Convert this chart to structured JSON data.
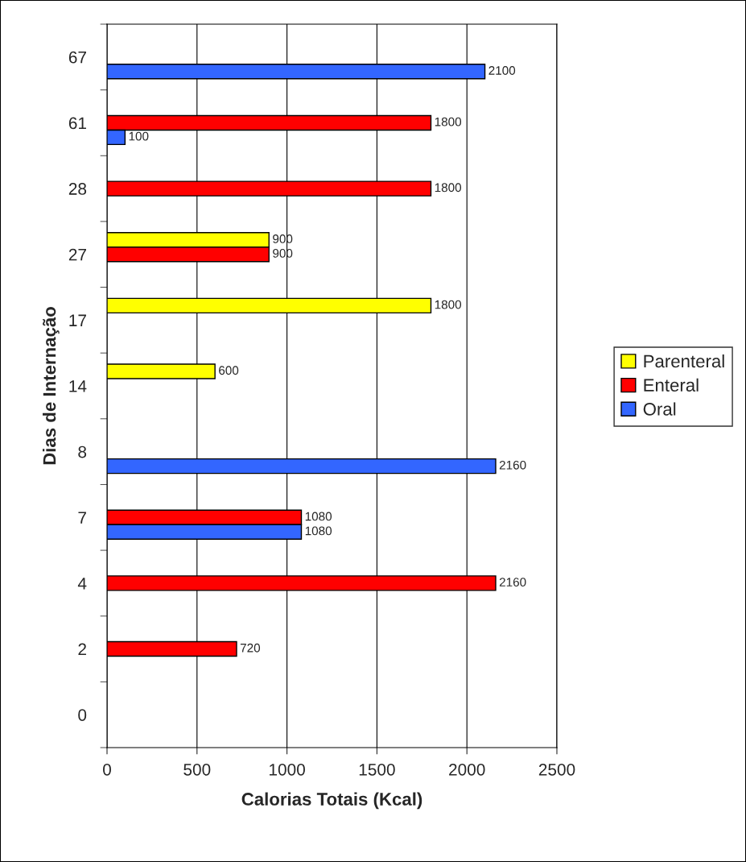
{
  "chart_data": {
    "type": "bar",
    "orientation": "horizontal",
    "xlabel": "Calorias Totais (Kcal)",
    "ylabel": "Dias de Internação",
    "categories": [
      "67",
      "61",
      "28",
      "27",
      "17",
      "14",
      "8",
      "7",
      "4",
      "2",
      "0"
    ],
    "series": [
      {
        "name": "Parenteral",
        "color": "#ffff00",
        "values": [
          null,
          null,
          null,
          900,
          1800,
          600,
          null,
          null,
          null,
          null,
          null
        ]
      },
      {
        "name": "Enteral",
        "color": "#ff0000",
        "values": [
          null,
          1800,
          1800,
          900,
          null,
          null,
          null,
          1080,
          2160,
          720,
          null
        ]
      },
      {
        "name": "Oral",
        "color": "#3366ff",
        "values": [
          2100,
          100,
          null,
          null,
          null,
          null,
          2160,
          1080,
          null,
          null,
          null
        ]
      }
    ],
    "xlim": [
      0,
      2500
    ],
    "xticks": [
      0,
      500,
      1000,
      1500,
      2000,
      2500
    ],
    "grid": "x",
    "legend": "right",
    "data_labels": true
  }
}
